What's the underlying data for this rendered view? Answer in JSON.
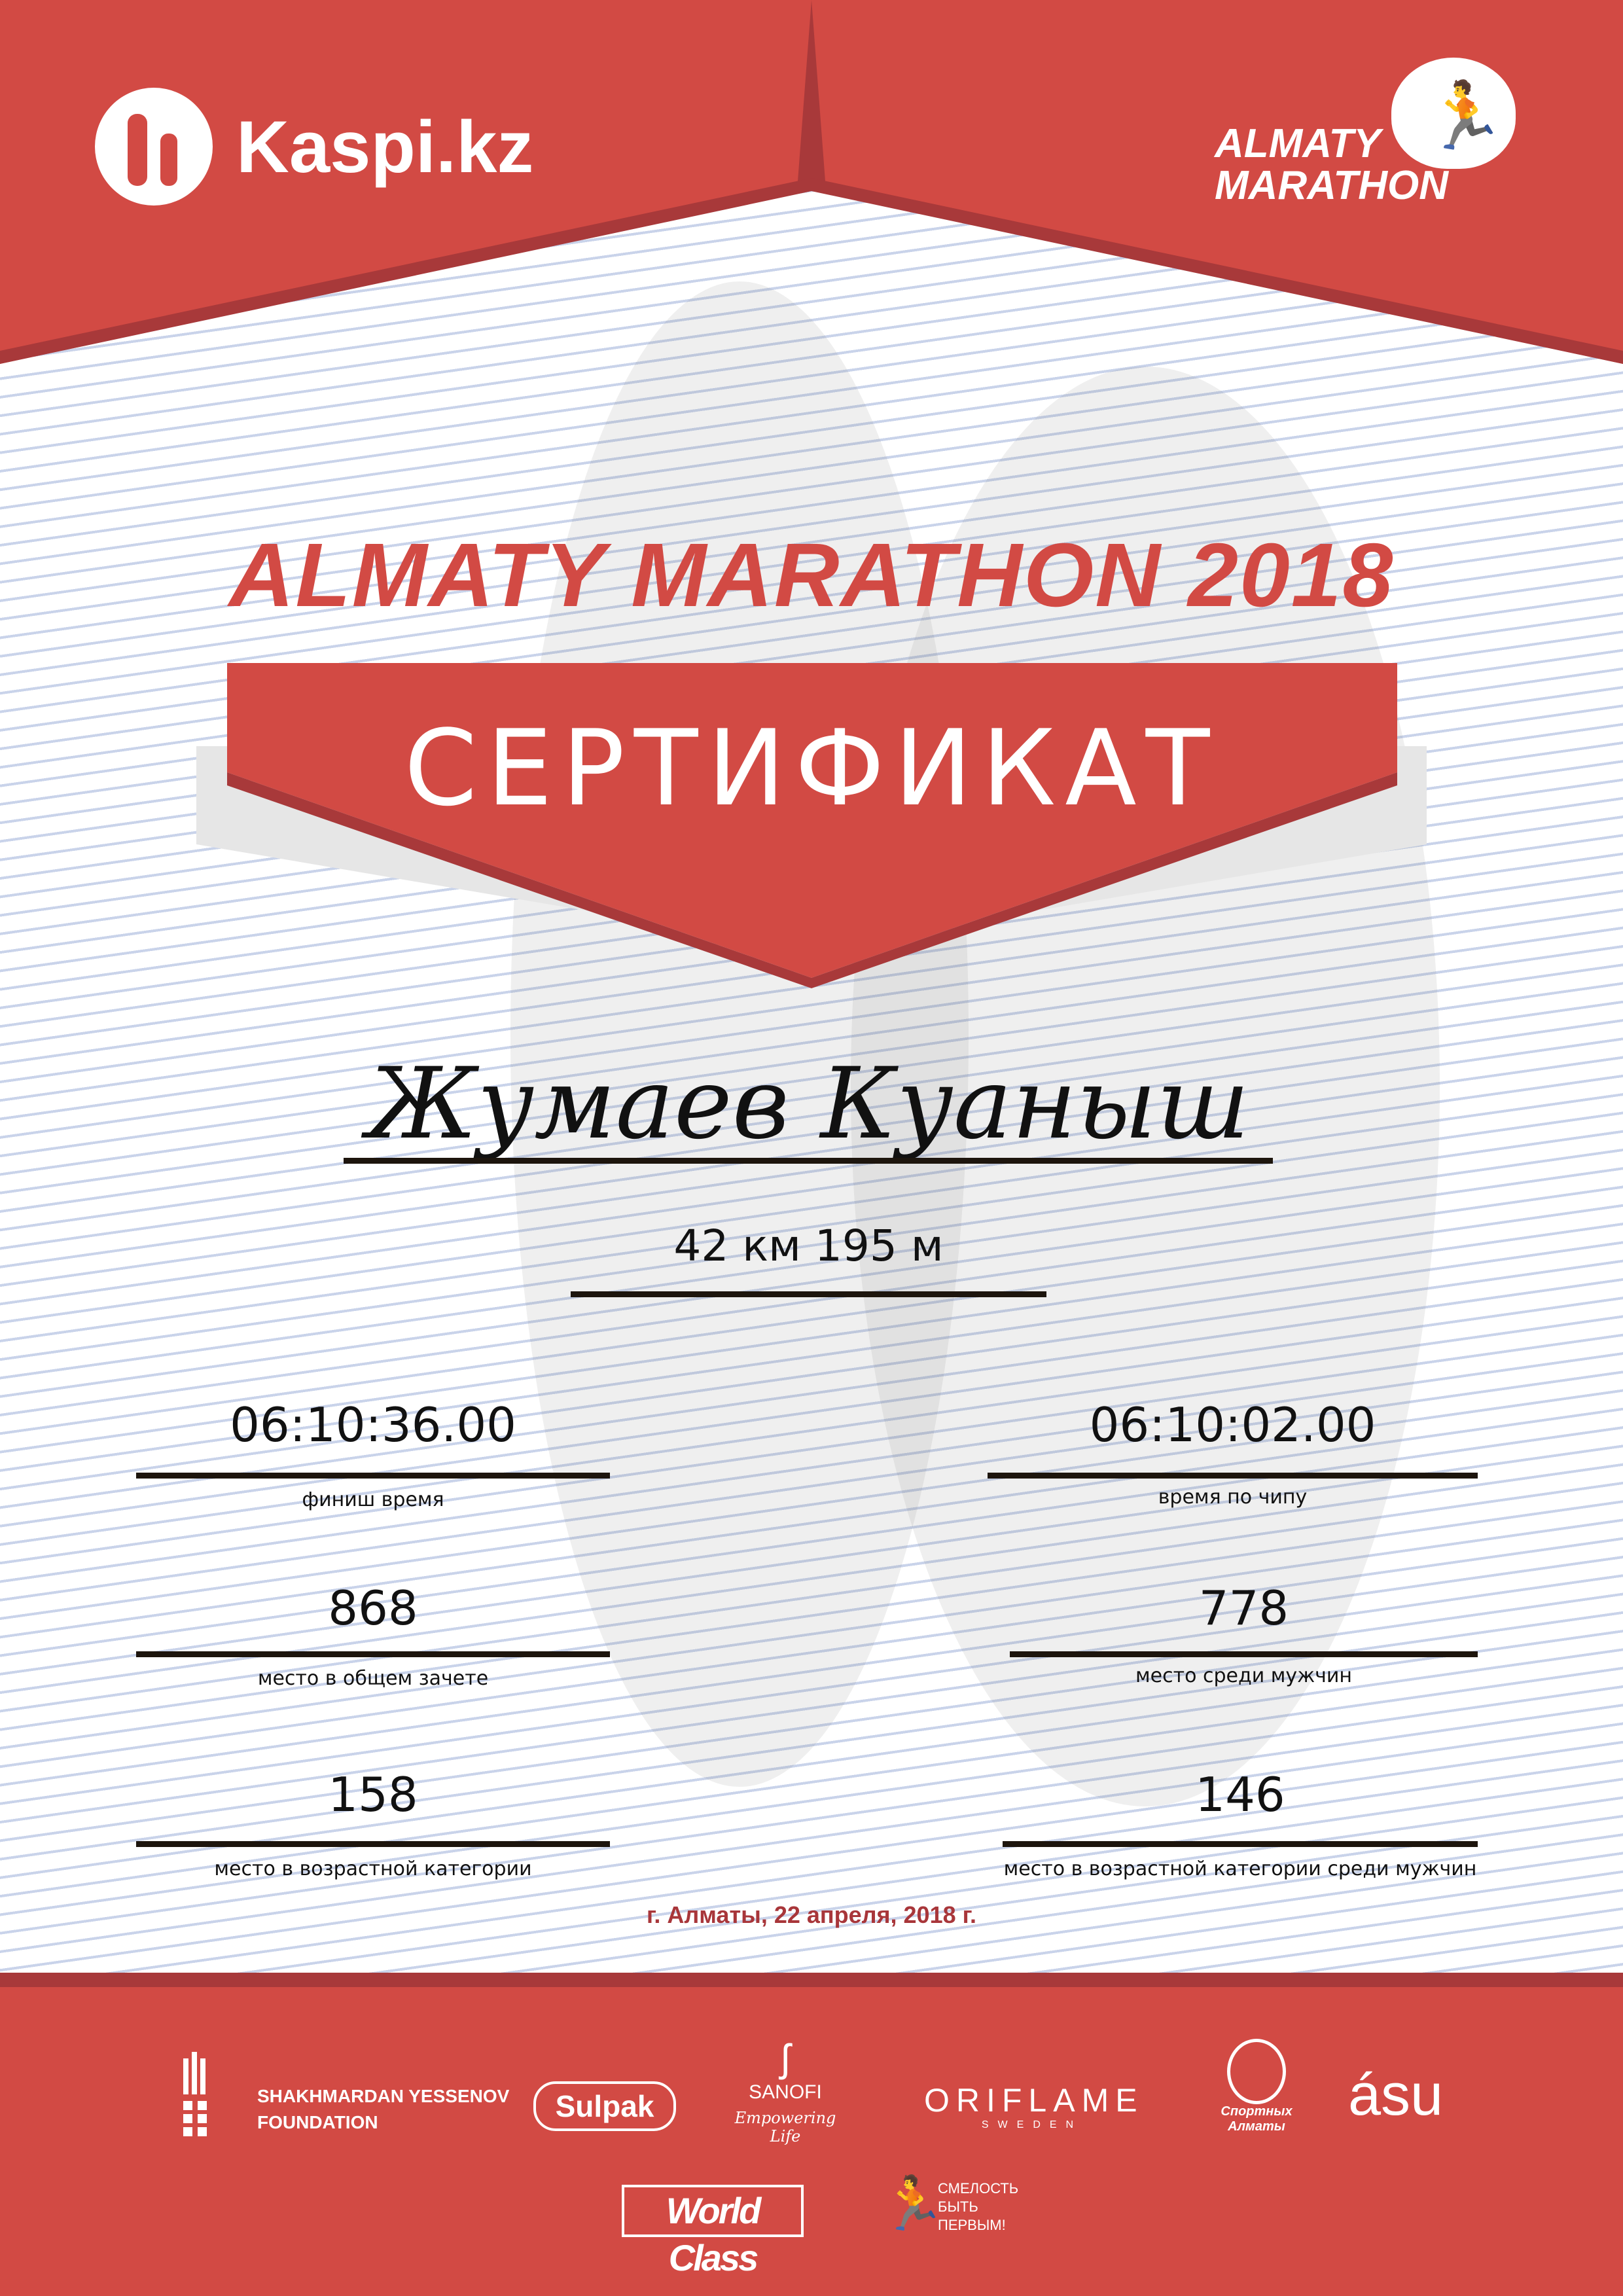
{
  "header": {
    "kaspi_logo": "Kaspi.kz",
    "marathon_logo": "ALMATY MARATHON",
    "accent_color": "#d24a44"
  },
  "title": "ALMATY MARATHON 2018",
  "certificate_label": "СЕРТИФИКАТ",
  "participant_name": "Жумаев Куаныш",
  "distance": "42 км 195 м",
  "results": {
    "finish_time": {
      "value": "06:10:36.00",
      "label": "финиш время"
    },
    "chip_time": {
      "value": "06:10:02.00",
      "label": "время по чипу"
    },
    "overall_place": {
      "value": "868",
      "label": "место в общем зачете"
    },
    "men_place": {
      "value": "778",
      "label": "место среди мужчин"
    },
    "age_place": {
      "value": "158",
      "label": "место в возрастной категории"
    },
    "age_men_place": {
      "value": "146",
      "label": "место в возрастной категории среди мужчин"
    }
  },
  "date_line": "г. Алматы, 22 апреля, 2018 г.",
  "sponsors": {
    "yessenov_1": "SHAKHMARDAN YESSENOV",
    "yessenov_2": "FOUNDATION",
    "sulpak": "Sulpak",
    "sanofi": "SANOFI",
    "sanofi_tag": "Empowering Life",
    "oriflame": "ORIFLAME",
    "oriflame_sub": "SWEDEN",
    "sport_almaty": "Спортных Алматы",
    "asu": "ásu",
    "worldclass": "World Class",
    "fund_1": "СМЕЛОСТЬ",
    "fund_2": "БЫТЬ",
    "fund_3": "ПЕРВЫМ!"
  }
}
